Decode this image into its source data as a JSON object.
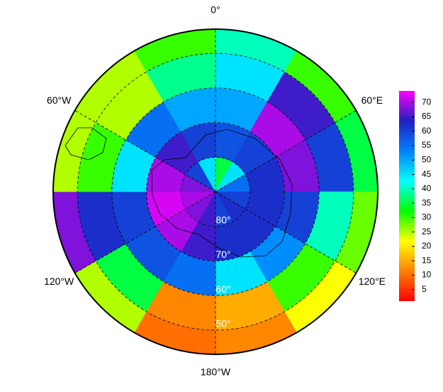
{
  "map": {
    "lon_ticks": [
      {
        "value": 0,
        "label": "0°"
      },
      {
        "value": 60,
        "label": "60°E"
      },
      {
        "value": 120,
        "label": "120°E"
      },
      {
        "value": 180,
        "label": "180°W"
      },
      {
        "value": 240,
        "label": "120°W"
      },
      {
        "value": 300,
        "label": "60°W"
      }
    ],
    "lat_ticks": [
      {
        "value": 80,
        "label": "80°"
      },
      {
        "value": 70,
        "label": "70°"
      },
      {
        "value": 60,
        "label": "60°"
      },
      {
        "value": 50,
        "label": "50°"
      }
    ],
    "lat_range": [
      90,
      43
    ],
    "lat_edges": [
      90,
      80,
      70,
      60,
      50,
      43
    ],
    "lon_edges": [
      0,
      30,
      60,
      90,
      120,
      150,
      180,
      210,
      240,
      270,
      300,
      330,
      360
    ],
    "values": [
      [
        35,
        45,
        55,
        60,
        62,
        60,
        65,
        68,
        70,
        68,
        60,
        45
      ],
      [
        58,
        60,
        62,
        62,
        62,
        62,
        65,
        70,
        72,
        70,
        65,
        60
      ],
      [
        50,
        70,
        68,
        60,
        52,
        45,
        55,
        58,
        60,
        45,
        55,
        50
      ],
      [
        45,
        65,
        60,
        40,
        30,
        15,
        12,
        35,
        62,
        30,
        25,
        38
      ],
      [
        40,
        30,
        35,
        28,
        22,
        12,
        10,
        25,
        68,
        25,
        25,
        30
      ]
    ],
    "colormap": [
      "#ff0000",
      "#ff8000",
      "#ffff00",
      "#00ff00",
      "#00ffff",
      "#0080ff",
      "#2020c0",
      "#ff00ff"
    ],
    "clim": [
      1,
      74
    ],
    "colorbar_ticks": [
      5,
      10,
      15,
      20,
      25,
      30,
      35,
      40,
      45,
      50,
      55,
      60,
      65,
      70
    ]
  }
}
